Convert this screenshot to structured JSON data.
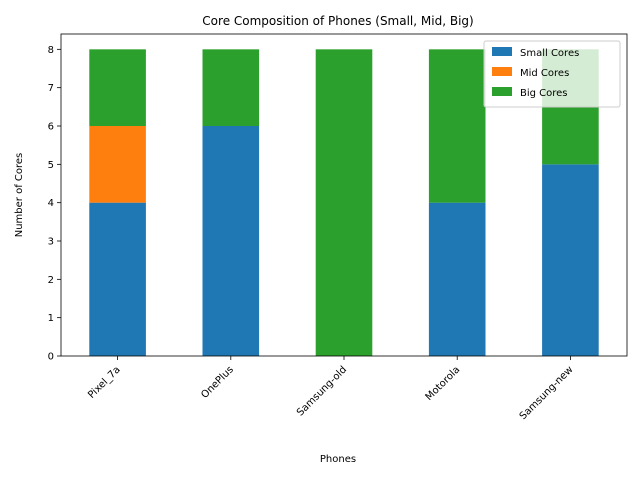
{
  "chart_data": {
    "type": "bar",
    "stacked": true,
    "title": "Core Composition of Phones (Small, Mid, Big)",
    "xlabel": "Phones",
    "ylabel": "Number of Cores",
    "categories": [
      "Pixel_7a",
      "OnePlus",
      "Samsung-old",
      "Motorola",
      "Samsung-new"
    ],
    "series": [
      {
        "name": "Small Cores",
        "color": "#1f77b4",
        "values": [
          4,
          6,
          0,
          4,
          5
        ]
      },
      {
        "name": "Mid Cores",
        "color": "#ff7f0e",
        "values": [
          2,
          0,
          0,
          0,
          0
        ]
      },
      {
        "name": "Big Cores",
        "color": "#2ca02c",
        "values": [
          2,
          2,
          8,
          4,
          3
        ]
      }
    ],
    "ylim": [
      0,
      8.4
    ],
    "yticks": [
      0,
      1,
      2,
      3,
      4,
      5,
      6,
      7,
      8
    ],
    "grid": false,
    "legend_position": "top-right"
  }
}
